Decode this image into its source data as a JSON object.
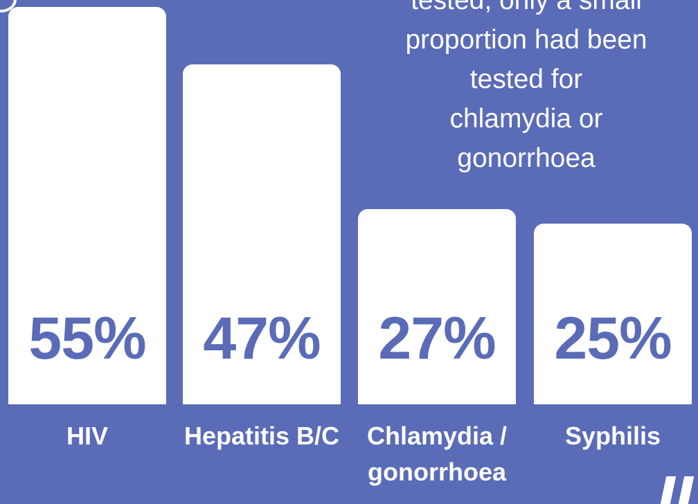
{
  "chart_data": {
    "type": "bar",
    "annotation": "tested, only a small\nproportion had been\ntested for\nchlamydia or\ngonorrhoea",
    "categories": [
      "HIV",
      "Hepatitis B/C",
      "Chlamydia / gonorrhoea",
      "Syphilis"
    ],
    "values": [
      55,
      47,
      27,
      25
    ],
    "value_labels": [
      "55%",
      "47%",
      "27%",
      "25%"
    ],
    "color": "#ffffff"
  }
}
